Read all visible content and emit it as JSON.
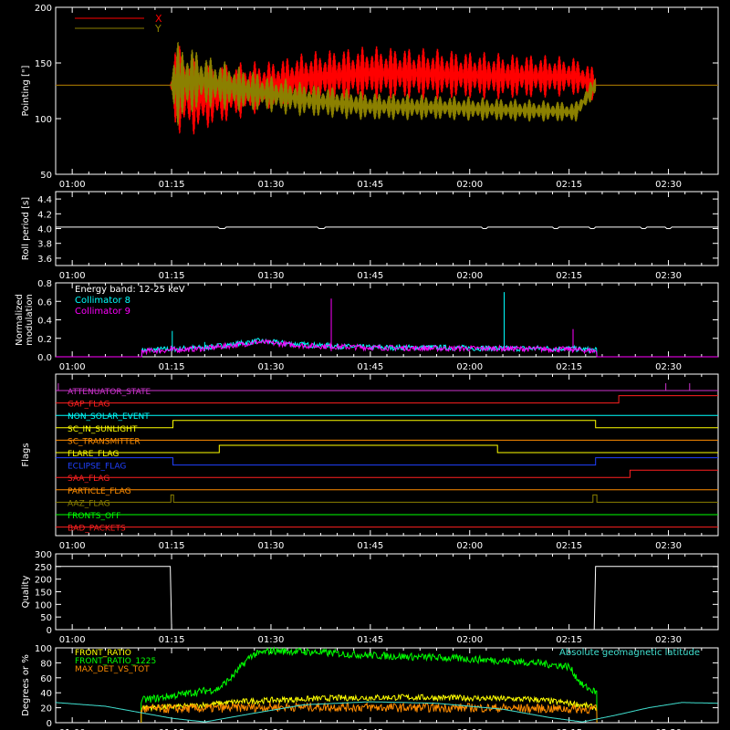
{
  "x_axis": {
    "ticks": [
      "01:00",
      "01:15",
      "01:30",
      "01:45",
      "02:00",
      "02:15",
      "02:30"
    ],
    "minutes": [
      0,
      15,
      30,
      45,
      60,
      75,
      90
    ],
    "range_minutes": [
      -2.5,
      97.5
    ]
  },
  "chart_data": [
    {
      "type": "line",
      "ylabel": "Pointing [\"]",
      "ylim": [
        50,
        200
      ],
      "yticks": [
        50,
        100,
        150,
        200
      ],
      "legend": "top-left",
      "series": [
        {
          "name": "X",
          "color": "#ff0000",
          "baseline": {
            "minutes": [
              -2.5,
              14.8,
              19,
              25,
              35,
              45,
              55,
              65,
              76,
              79,
              97.5
            ],
            "values": [
              130,
              130,
              118,
              125,
              136,
              141,
              140,
              138,
              138,
              130,
              130
            ]
          },
          "swing": {
            "minutes": [
              14.8,
              15.5,
              20,
              30,
              40,
              50,
              60,
              70,
              79
            ],
            "values": [
              0,
              42,
              30,
              22,
              25,
              24,
              22,
              20,
              16
            ]
          }
        },
        {
          "name": "Y",
          "color": "#8b8000",
          "baseline": {
            "minutes": [
              -2.5,
              14.8,
              19,
              25,
              35,
              45,
              55,
              65,
              76,
              79,
              97.5
            ],
            "values": [
              130,
              130,
              135,
              127,
              117,
              111,
              110,
              108,
              106,
              130,
              130
            ]
          },
          "swing": {
            "minutes": [
              14.8,
              15.5,
              20,
              30,
              40,
              50,
              60,
              70,
              79
            ],
            "values": [
              0,
              40,
              24,
              17,
              14,
              12,
              11,
              10,
              9
            ]
          }
        }
      ]
    },
    {
      "type": "line",
      "ylabel": "Roll period [s]",
      "ylim": [
        3.5,
        4.5
      ],
      "yticks": [
        3.6,
        3.8,
        4.0,
        4.2,
        4.4
      ],
      "series": [
        {
          "name": "",
          "color": "#ffffff",
          "minutes": [
            -2.5,
            97.5
          ],
          "values": [
            4.02,
            4.02
          ]
        }
      ]
    },
    {
      "type": "line",
      "title": "Energy band: 12-25 keV",
      "ylabel": "Normalized modulation",
      "ylim": [
        0,
        0.8
      ],
      "yticks": [
        0.0,
        0.2,
        0.4,
        0.6,
        0.8
      ],
      "legend": "top-left",
      "active_minutes": [
        10.5,
        79.2
      ],
      "series": [
        {
          "name": "Collimator 8",
          "color": "#00ffff",
          "envelope": {
            "minutes": [
              10.5,
              20,
              25,
              28,
              35,
              45,
              55,
              65,
              75,
              79.2
            ],
            "values": [
              0.07,
              0.1,
              0.14,
              0.17,
              0.13,
              0.1,
              0.1,
              0.09,
              0.09,
              0.07
            ]
          },
          "spikes": [
            {
              "minute": 15.1,
              "value": 0.28
            },
            {
              "minute": 65.2,
              "value": 0.7
            },
            {
              "minute": 20,
              "value": 0.16
            }
          ]
        },
        {
          "name": "Collimator 9",
          "color": "#ff00ff",
          "envelope": {
            "minutes": [
              10.5,
              20,
              25,
              28,
              35,
              45,
              55,
              65,
              75,
              79.2
            ],
            "values": [
              0.06,
              0.09,
              0.13,
              0.16,
              0.12,
              0.1,
              0.09,
              0.09,
              0.08,
              0.06
            ]
          },
          "spikes": [
            {
              "minute": 39.1,
              "value": 0.63
            },
            {
              "minute": 14.9,
              "value": 0.12
            },
            {
              "minute": 75.6,
              "value": 0.3
            }
          ]
        }
      ]
    },
    {
      "type": "line",
      "ylabel": "Flags",
      "series": [
        {
          "name": "ATTENUATOR_STATE",
          "color": "#cc33cc",
          "steps": [
            [
              -2.5,
              0
            ]
          ],
          "ticks": [
            -2.1,
            89.6,
            93.2
          ]
        },
        {
          "name": "GAP_FLAG",
          "color": "#ff2020",
          "steps": [
            [
              -2.5,
              0
            ],
            [
              82.5,
              1
            ]
          ]
        },
        {
          "name": "NON_SOLAR_EVENT",
          "color": "#00ffff",
          "steps": [
            [
              -2.5,
              0
            ]
          ]
        },
        {
          "name": "SC_IN_SUNLIGHT",
          "color": "#ffff00",
          "steps": [
            [
              -2.5,
              0
            ],
            [
              15.2,
              1
            ],
            [
              79.0,
              0
            ]
          ]
        },
        {
          "name": "SC_TRANSMITTER",
          "color": "#ff8c00",
          "steps": [
            [
              -2.5,
              0
            ]
          ]
        },
        {
          "name": "FLARE_FLAG",
          "color": "#ffff00",
          "steps": [
            [
              -2.5,
              0
            ],
            [
              22.2,
              1
            ],
            [
              64.2,
              0
            ]
          ]
        },
        {
          "name": "ECLIPSE_FLAG",
          "color": "#2040ff",
          "steps": [
            [
              -2.5,
              1
            ],
            [
              15.2,
              0
            ],
            [
              79.0,
              1
            ]
          ]
        },
        {
          "name": "SAA_FLAG",
          "color": "#ff2020",
          "steps": [
            [
              -2.5,
              0
            ],
            [
              84.2,
              1
            ]
          ]
        },
        {
          "name": "PARTICLE_FLAG",
          "color": "#ff8c00",
          "steps": [
            [
              -2.5,
              0
            ]
          ]
        },
        {
          "name": "AAZ_FLAG",
          "color": "#8b8000",
          "steps": [
            [
              -2.5,
              0
            ],
            [
              14.9,
              1
            ],
            [
              15.3,
              0
            ],
            [
              78.6,
              1
            ],
            [
              79.2,
              0
            ]
          ]
        },
        {
          "name": "FRONTS_OFF",
          "color": "#00ff00",
          "steps": [
            [
              -2.5,
              0
            ]
          ]
        },
        {
          "name": "BAD_PACKETS",
          "color": "#ff2020",
          "steps": [
            [
              -2.5,
              0
            ]
          ]
        }
      ]
    },
    {
      "type": "line",
      "ylabel": "Quality",
      "ylim": [
        0,
        300
      ],
      "yticks": [
        0,
        50,
        100,
        150,
        200,
        250,
        300
      ],
      "series": [
        {
          "name": "",
          "color": "#ffffff",
          "minutes": [
            -2.5,
            14.8,
            15.0,
            78.8,
            79.0,
            97.5
          ],
          "values": [
            250,
            250,
            0,
            0,
            250,
            250
          ]
        }
      ]
    },
    {
      "type": "line",
      "ylabel": "Degrees or %",
      "ylim": [
        0,
        100
      ],
      "yticks": [
        0,
        20,
        40,
        60,
        80,
        100
      ],
      "legend": "top-left",
      "series": [
        {
          "name": "FRONT_RATIO",
          "color": "#ffff00",
          "minutes": [
            10.4,
            18,
            25,
            30,
            40,
            50,
            60,
            70,
            76,
            79.2
          ],
          "values": [
            20,
            22,
            28,
            30,
            33,
            34,
            33,
            31,
            25,
            20
          ],
          "noise": 4
        },
        {
          "name": "FRONT_RATIO_1225",
          "color": "#00ff00",
          "minutes": [
            10.4,
            13,
            18,
            22,
            24,
            27,
            30,
            35,
            45,
            55,
            60,
            65,
            70,
            75,
            77,
            79.2
          ],
          "values": [
            30,
            33,
            40,
            45,
            60,
            90,
            96,
            95,
            90,
            87,
            85,
            83,
            80,
            75,
            50,
            40
          ],
          "noise": 5
        },
        {
          "name": "MAX_DET_VS_TOT",
          "color": "#ff8c00",
          "minutes": [
            10.4,
            20,
            30,
            40,
            50,
            60,
            70,
            79.2
          ],
          "values": [
            18,
            19,
            21,
            21,
            20,
            20,
            19,
            18
          ],
          "noise": 6
        },
        {
          "name": "Absolute geomagnetic latitude",
          "color": "#40e0d0",
          "minutes": [
            -2.5,
            5,
            10,
            15,
            20,
            27,
            35,
            45,
            55,
            65,
            72,
            77,
            82,
            87,
            92,
            97.5
          ],
          "values": [
            27,
            22,
            14,
            6,
            1,
            12,
            24,
            28,
            26,
            18,
            7,
            1,
            10,
            20,
            27,
            26
          ],
          "noise": 0
        }
      ]
    }
  ]
}
